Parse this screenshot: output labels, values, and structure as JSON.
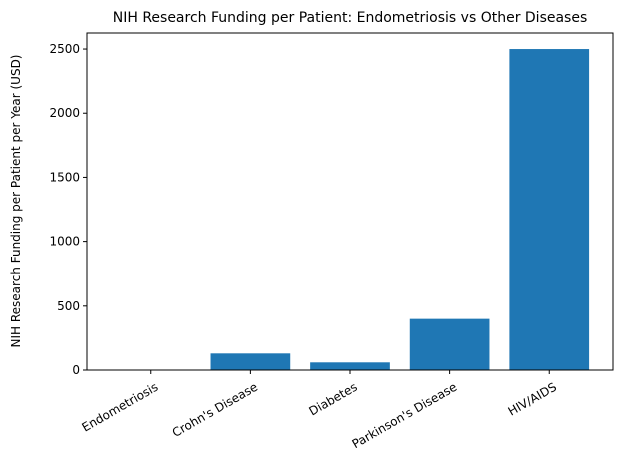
{
  "chart_data": {
    "type": "bar",
    "title": "NIH Research Funding per Patient: Endometriosis vs Other Diseases",
    "y_label": "NIH Research Funding per Patient per Year (USD)",
    "categories": [
      "Endometriosis",
      "Crohn's Disease",
      "Diabetes",
      "Parkinson's Disease",
      "HIV/AIDS"
    ],
    "values": [
      2,
      130,
      60,
      400,
      2500
    ],
    "color": "#1f77b4",
    "ylim": [
      0,
      2625
    ],
    "yticks": [
      0,
      500,
      1000,
      1500,
      2000,
      2500
    ],
    "grid": false
  }
}
